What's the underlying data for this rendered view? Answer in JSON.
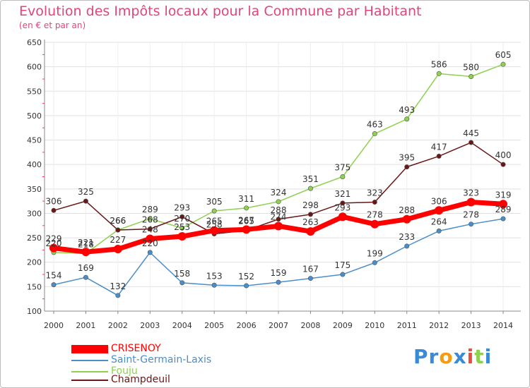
{
  "header": {
    "title": "Evolution des Impôts locaux pour la Commune par Habitant",
    "subtitle": "(en € et par an)"
  },
  "colors": {
    "title": "#e0457b",
    "grid": "#e0e0e0",
    "axis": "#888888",
    "tick_text": "#333333"
  },
  "chart_data": {
    "type": "line",
    "categories": [
      "2000",
      "2001",
      "2002",
      "2003",
      "2004",
      "2005",
      "2006",
      "2007",
      "2008",
      "2009",
      "2010",
      "2011",
      "2012",
      "2013",
      "2014"
    ],
    "ylim": [
      100,
      650
    ],
    "yticks": [
      100,
      150,
      200,
      250,
      300,
      350,
      400,
      450,
      500,
      550,
      600,
      650
    ],
    "grid": true,
    "legend_position": "bottom-left",
    "series": [
      {
        "name": "CRISENOY",
        "color": "#ff0000",
        "values": [
          229,
          221,
          227,
          248,
          253,
          265,
          267,
          274,
          263,
          293,
          278,
          288,
          306,
          323,
          319
        ],
        "labels": [
          "229",
          "221",
          "227",
          "248",
          "253",
          "265",
          "267",
          "274",
          "263",
          "293",
          "278",
          "288",
          "306",
          "323",
          "319"
        ]
      },
      {
        "name": "Saint-Germain-Laxis",
        "color": "#4a8ec9",
        "values": [
          154,
          169,
          132,
          220,
          158,
          153,
          152,
          159,
          167,
          175,
          199,
          233,
          264,
          278,
          289
        ],
        "labels": [
          "154",
          "169",
          "132",
          "220",
          "158",
          "153",
          "152",
          "159",
          "167",
          "175",
          "199",
          "233",
          "264",
          "278",
          "289"
        ]
      },
      {
        "name": "Fouju",
        "color": "#8ed14f",
        "values": [
          220,
          218,
          266,
          289,
          270,
          305,
          311,
          324,
          351,
          375,
          463,
          493,
          586,
          580,
          605
        ],
        "labels": [
          "220",
          "218",
          "266",
          "289",
          "270",
          "305",
          "311",
          "324",
          "351",
          "375",
          "463",
          "493",
          "586",
          "580",
          "605"
        ]
      },
      {
        "name": "Champdeuil",
        "color": "#6b1616",
        "values": [
          306,
          325,
          266,
          268,
          293,
          258,
          265,
          288,
          298,
          321,
          323,
          395,
          417,
          445,
          400
        ],
        "labels": [
          "306",
          "325",
          "266",
          "268",
          "293",
          "258",
          "265",
          "288",
          "298",
          "321",
          "323",
          "395",
          "417",
          "445",
          "400"
        ]
      }
    ]
  },
  "legend": {
    "items": [
      {
        "label": "CRISENOY",
        "color": "#ff0000"
      },
      {
        "label": "Saint-Germain-Laxis",
        "color": "#4a8ec9"
      },
      {
        "label": "Fouju",
        "color": "#8ed14f"
      },
      {
        "label": "Champdeuil",
        "color": "#6b1616"
      }
    ]
  },
  "logo": {
    "text": "Proxiti",
    "letters": [
      "P",
      "r",
      "o",
      "x",
      "i",
      "t",
      "i"
    ],
    "colors": [
      "#3a8ad6",
      "#3a8ad6",
      "#f39c12",
      "#3a8ad6",
      "#e74c3c",
      "#8ed14f",
      "#3a8ad6"
    ]
  }
}
